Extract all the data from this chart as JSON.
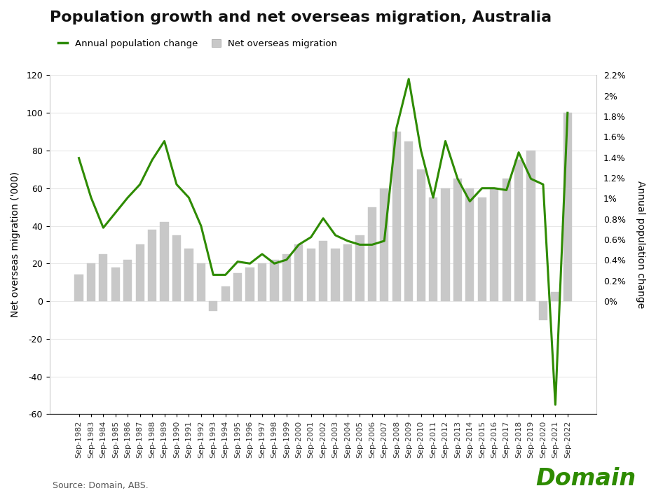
{
  "title": "Population growth and net overseas migration, Australia",
  "legend_line": "Annual population change",
  "legend_bar": "Net overseas migration",
  "ylabel_left": "Net overseas migration ('000)",
  "ylabel_right": "Annual population change",
  "source": "Source: Domain, ABS.",
  "line_color": "#2e8b00",
  "bar_color": "#c8c8c8",
  "bar_edge_color": "#b0b0b0",
  "background_color": "#ffffff",
  "ylim_left": [
    -60,
    120
  ],
  "x_labels": [
    "Sep-1982",
    "Sep-1983",
    "Sep-1984",
    "Sep-1985",
    "Sep-1986",
    "Sep-1987",
    "Sep-1988",
    "Sep-1989",
    "Sep-1990",
    "Sep-1991",
    "Sep-1992",
    "Sep-1993",
    "Sep-1994",
    "Sep-1995",
    "Sep-1996",
    "Sep-1997",
    "Sep-1998",
    "Sep-1999",
    "Sep-2000",
    "Sep-2001",
    "Sep-2002",
    "Sep-2003",
    "Sep-2004",
    "Sep-2005",
    "Sep-2006",
    "Sep-2007",
    "Sep-2008",
    "Sep-2009",
    "Sep-2010",
    "Sep-2011",
    "Sep-2012",
    "Sep-2013",
    "Sep-2014",
    "Sep-2015",
    "Sep-2016",
    "Sep-2017",
    "Sep-2018",
    "Sep-2019",
    "Sep-2020",
    "Sep-2021",
    "Sep-2022"
  ],
  "bar_values": [
    14,
    20,
    25,
    18,
    22,
    30,
    38,
    42,
    35,
    28,
    20,
    -5,
    8,
    15,
    18,
    20,
    22,
    25,
    30,
    28,
    32,
    28,
    30,
    35,
    50,
    60,
    90,
    85,
    70,
    55,
    60,
    65,
    60,
    55,
    60,
    65,
    75,
    80,
    -10,
    5,
    100
  ],
  "line_values": [
    76,
    55,
    39,
    47,
    55,
    62,
    75,
    85,
    62,
    55,
    40,
    14,
    14,
    21,
    20,
    25,
    20,
    22,
    30,
    34,
    44,
    35,
    32,
    30,
    30,
    32,
    92,
    118,
    80,
    55,
    85,
    65,
    53,
    60,
    60,
    59,
    79,
    65,
    62,
    -55,
    100
  ],
  "yticks_left": [
    -60,
    -40,
    -20,
    0,
    20,
    40,
    60,
    80,
    100,
    120
  ],
  "yticks_right_labels": [
    "0%",
    "0.2%",
    "0.4%",
    "0.6%",
    "0.8%",
    "1%",
    "1.2%",
    "1.4%",
    "1.6%",
    "1.8%",
    "2%",
    "2.2%"
  ],
  "yticks_right_vals": [
    0,
    10.909,
    21.818,
    32.727,
    43.636,
    54.545,
    65.454,
    76.363,
    87.272,
    98.181,
    109.09,
    120
  ],
  "domain_color": "#2e8b00",
  "title_fontsize": 16,
  "axis_label_fontsize": 10,
  "tick_fontsize": 9,
  "xtick_fontsize": 8
}
